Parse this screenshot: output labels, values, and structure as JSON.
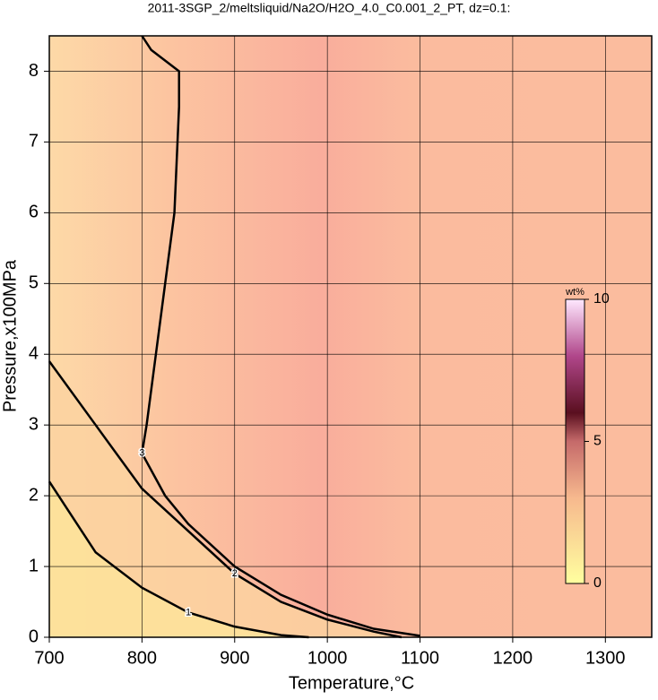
{
  "chart_data": {
    "type": "contour",
    "title": "2011-3SGP_2/meltsliquid/Na2O/H2O_4.0_C0.001_2_PT, dz=0.1:",
    "x_label": "Temperature,°C",
    "y_label": "Pressure,x100MPa",
    "xlim": [
      700,
      1350
    ],
    "ylim": [
      0,
      8.5
    ],
    "xticks": [
      700,
      800,
      900,
      1000,
      1100,
      1200,
      1300
    ],
    "yticks": [
      0,
      1,
      2,
      3,
      4,
      5,
      6,
      7,
      8
    ],
    "grid": true,
    "contours": [
      {
        "level": 1,
        "x": [
          700,
          750,
          800,
          850,
          900,
          950,
          980
        ],
        "y": [
          2.2,
          1.2,
          0.7,
          0.35,
          0.15,
          0.03,
          0
        ]
      },
      {
        "level": 2,
        "x": [
          700,
          750,
          800,
          850,
          900,
          950,
          1000,
          1050,
          1080
        ],
        "y": [
          3.9,
          3.0,
          2.1,
          1.5,
          0.9,
          0.5,
          0.25,
          0.08,
          0
        ]
      },
      {
        "level": 3,
        "x": [
          800,
          810,
          840,
          840,
          835,
          825,
          815,
          805,
          800,
          825,
          850,
          900,
          950,
          1000,
          1050,
          1100
        ],
        "y": [
          8.5,
          8.3,
          8.0,
          7.5,
          6.0,
          5.0,
          4.0,
          3.0,
          2.6,
          2.0,
          1.6,
          1.0,
          0.6,
          0.32,
          0.12,
          0.02
        ]
      }
    ],
    "colorbar": {
      "label": "wt%",
      "lim": [
        0,
        10
      ],
      "ticks": [
        0,
        5,
        10
      ]
    }
  }
}
